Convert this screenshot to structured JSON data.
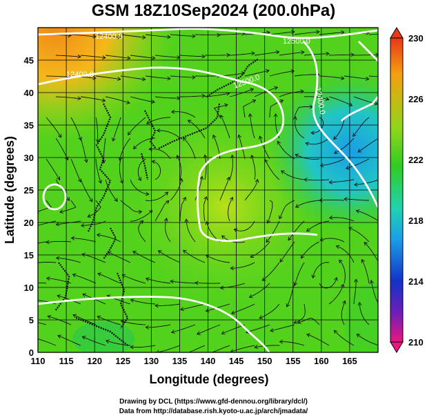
{
  "title": "GSM 18Z10Sep2024 (200.0hPa)",
  "axes": {
    "xlabel": "Longitude (degrees)",
    "ylabel": "Latitude  (degrees)",
    "xticks": [
      "110",
      "115",
      "120",
      "125",
      "130",
      "135",
      "140",
      "145",
      "150",
      "155",
      "160",
      "165"
    ],
    "yticks": [
      "0",
      "5",
      "10",
      "15",
      "20",
      "25",
      "30",
      "35",
      "40",
      "45"
    ],
    "xlim": [
      110,
      170
    ],
    "ylim": [
      0,
      50
    ]
  },
  "colorbar": {
    "labels": [
      "230",
      "226",
      "222",
      "218",
      "214",
      "210"
    ],
    "range": [
      210,
      230
    ],
    "colors": [
      "#e8187f",
      "#6a1fb8",
      "#1432c8",
      "#1aa0e8",
      "#20d3b0",
      "#31cc22",
      "#8ed61a",
      "#f5a010",
      "#e83818"
    ]
  },
  "contour_labels": [
    "12400.0",
    "12500.0",
    "12400.0",
    "12400.0",
    "12500.0"
  ],
  "credits": {
    "line1": "Drawing by DCL (https://www.gfd-dennou.org/library/dcl/)",
    "line2": "Data from http://database.rish.kyoto-u.ac.jp/arch/jmadata/"
  },
  "colors": {
    "land_outline": "#000000",
    "grid": "#000000",
    "contour": "#ffffff"
  }
}
